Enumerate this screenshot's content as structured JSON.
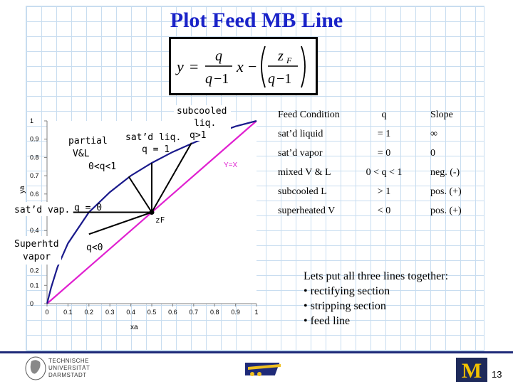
{
  "slide": {
    "title": "Plot Feed MB Line",
    "page_number": "13"
  },
  "formula": {
    "y": "y",
    "eq": "=",
    "q_num": "q",
    "q_den": "q",
    "minus1": "−1",
    "x": "x",
    "minus": "−",
    "zf_num": "z",
    "zf_sub": "F",
    "q_den2": "q",
    "minus1b": "−1"
  },
  "table": {
    "headers": [
      "Feed Condition",
      "q",
      "Slope"
    ],
    "rows": [
      [
        "sat’d liquid",
        "= 1",
        "∞"
      ],
      [
        "sat’d vapor",
        "= 0",
        "0"
      ],
      [
        "mixed V & L",
        "0 < q < 1",
        "neg. (-)"
      ],
      [
        "subcooled L",
        "> 1",
        "pos. (+)"
      ],
      [
        "superheated V",
        "< 0",
        "pos. (+)"
      ]
    ]
  },
  "bullets": {
    "intro": "Lets put all three lines together:",
    "items": [
      "• rectifying section",
      "• stripping section",
      "• feed line"
    ]
  },
  "logos": {
    "tud_line1": "TECHNISCHE",
    "tud_line2": "UNIVERSITÄT",
    "tud_line3": "DARMSTADT",
    "michigan": "M"
  },
  "chart_data": {
    "type": "line",
    "xlabel": "xa",
    "ylabel": "ya",
    "xlim": [
      0,
      1
    ],
    "ylim": [
      0,
      1
    ],
    "x_ticks": [
      "0",
      "0.1",
      "0.2",
      "0.3",
      "0.4",
      "0.5",
      "0.6",
      "0.7",
      "0.8",
      "0.9",
      "1"
    ],
    "y_ticks": [
      {
        "v": 1,
        "label": "1"
      },
      {
        "v": 0.9,
        "label": "0.9"
      },
      {
        "v": 0.8,
        "label": "0.8"
      },
      {
        "v": 0.7,
        "label": "0.7"
      },
      {
        "v": 0.6,
        "label": "0.6"
      },
      {
        "v": 0.4,
        "label": "0.4"
      },
      {
        "v": 0.1,
        "label": "0.1"
      },
      {
        "v": 0,
        "label": "0"
      }
    ],
    "y_partial_tick": {
      "v": 0.2,
      "label": "0.2"
    },
    "equilibrium_curve": {
      "x": [
        0,
        0.02,
        0.05,
        0.1,
        0.2,
        0.3,
        0.4,
        0.5,
        0.6,
        0.7,
        0.8,
        0.9,
        1.0
      ],
      "y": [
        0,
        0.09,
        0.2,
        0.33,
        0.5,
        0.61,
        0.7,
        0.77,
        0.83,
        0.88,
        0.93,
        0.97,
        1.0
      ]
    },
    "yx_line": {
      "x": [
        0,
        1
      ],
      "y": [
        0,
        1
      ]
    },
    "feed_point": {
      "x": 0.5,
      "y": 0.5
    },
    "feed_lines": [
      {
        "name": "q = 1",
        "x": [
          0.5,
          0.5
        ],
        "y": [
          0.5,
          0.77
        ]
      },
      {
        "name": "0<q<1",
        "x": [
          0.5,
          0.39
        ],
        "y": [
          0.5,
          0.695
        ]
      },
      {
        "name": "q>1",
        "x": [
          0.5,
          0.69
        ],
        "y": [
          0.5,
          0.88
        ]
      },
      {
        "name": "q = 0",
        "x": [
          0.5,
          0.125
        ],
        "y": [
          0.5,
          0.5
        ]
      },
      {
        "name": "q<0",
        "x": [
          0.5,
          0.2
        ],
        "y": [
          0.5,
          0.38
        ]
      }
    ],
    "labels": {
      "yx": "Y=X",
      "zf": "zF",
      "satd_liq": "sat’d liq.",
      "satd_liq_q": "q = 1",
      "partial_1": "partial",
      "partial_2": "V&L",
      "partial_3": "0<q<1",
      "subcooled_1": "subcooled",
      "subcooled_2": "liq.",
      "subcooled_3": "q>1",
      "satd_vap": "sat’d vap.",
      "satd_vap_q": "q = 0",
      "superhtd_1": "Superhtd",
      "superhtd_2": "vapor",
      "superhtd_q": "q<0"
    },
    "colors": {
      "equilibrium": "#1a1a8c",
      "yx": "#e020d0",
      "feed": "#000000"
    }
  }
}
